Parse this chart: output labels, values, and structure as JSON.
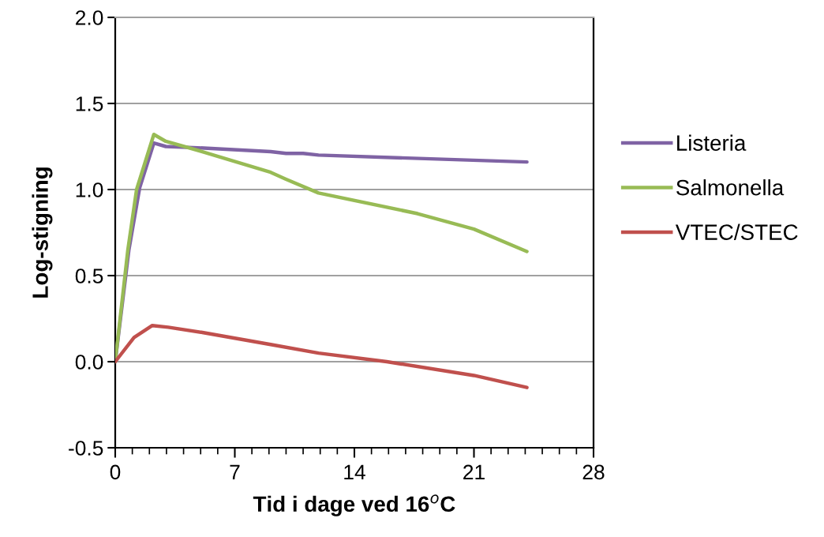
{
  "chart_data": {
    "type": "line",
    "xlabel": "Tid i dage ved 16$^{o}$C",
    "ylabel": "Log-stigning",
    "xlim": [
      0,
      28
    ],
    "ylim": [
      -0.5,
      2.0
    ],
    "xticks": [
      0,
      {
        "value": 1,
        "label": null
      },
      {
        "value": 2,
        "label": null
      },
      {
        "value": 3,
        "label": null
      },
      {
        "value": 4,
        "label": null
      },
      {
        "value": 5,
        "label": null
      },
      {
        "value": 6,
        "label": null
      },
      7,
      {
        "value": 8,
        "label": null
      },
      {
        "value": 9,
        "label": null
      },
      {
        "value": 10,
        "label": null
      },
      {
        "value": 11,
        "label": null
      },
      {
        "value": 12,
        "label": null
      },
      {
        "value": 13,
        "label": null
      },
      14,
      {
        "value": 15,
        "label": null
      },
      {
        "value": 16,
        "label": null
      },
      {
        "value": 17,
        "label": null
      },
      {
        "value": 18,
        "label": null
      },
      {
        "value": 19,
        "label": null
      },
      {
        "value": 20,
        "label": null
      },
      21,
      {
        "value": 22,
        "label": null
      },
      {
        "value": 23,
        "label": null
      },
      {
        "value": 24,
        "label": null
      },
      {
        "value": 25,
        "label": null
      },
      {
        "value": 26,
        "label": null
      },
      {
        "value": 27,
        "label": null
      },
      28
    ],
    "yticks": [
      {
        "value": -0.5,
        "label": "-0.5"
      },
      {
        "value": 0,
        "label": "0.0"
      },
      {
        "value": 0.5,
        "label": "0.5"
      },
      {
        "value": 1.0,
        "label": "1.0"
      },
      {
        "value": 1.5,
        "label": "1.5"
      },
      {
        "value": 2.0,
        "label": "2.0"
      }
    ],
    "grid": "y",
    "legend": "right",
    "marker": "none",
    "line_style": "solid",
    "series": [
      {
        "name": "Listeria",
        "color": "#7f63a4",
        "x": [
          0,
          0.8,
          1.43,
          2.26,
          2.96,
          5.4,
          9.1,
          10.0,
          11.0,
          11.9,
          24.1
        ],
        "values": [
          0,
          0.65,
          1.01,
          1.27,
          1.25,
          1.24,
          1.22,
          1.21,
          1.21,
          1.2,
          1.16
        ]
      },
      {
        "name": "Salmonella",
        "color": "#98bb55",
        "x": [
          0,
          0.74,
          1.25,
          2.26,
          2.96,
          5.1,
          9.1,
          10.0,
          11.9,
          17.7,
          21.0,
          24.1
        ],
        "values": [
          0,
          0.65,
          1.0,
          1.32,
          1.28,
          1.22,
          1.1,
          1.06,
          0.98,
          0.86,
          0.77,
          0.64
        ]
      },
      {
        "name": "VTEC/STEC",
        "color": "#c0504d",
        "x": [
          0,
          1.1,
          2.17,
          3.1,
          5.1,
          9.1,
          11.9,
          15.9,
          21.0,
          24.1
        ],
        "values": [
          0,
          0.14,
          0.21,
          0.2,
          0.17,
          0.1,
          0.05,
          0.0,
          -0.08,
          -0.15
        ]
      }
    ]
  }
}
